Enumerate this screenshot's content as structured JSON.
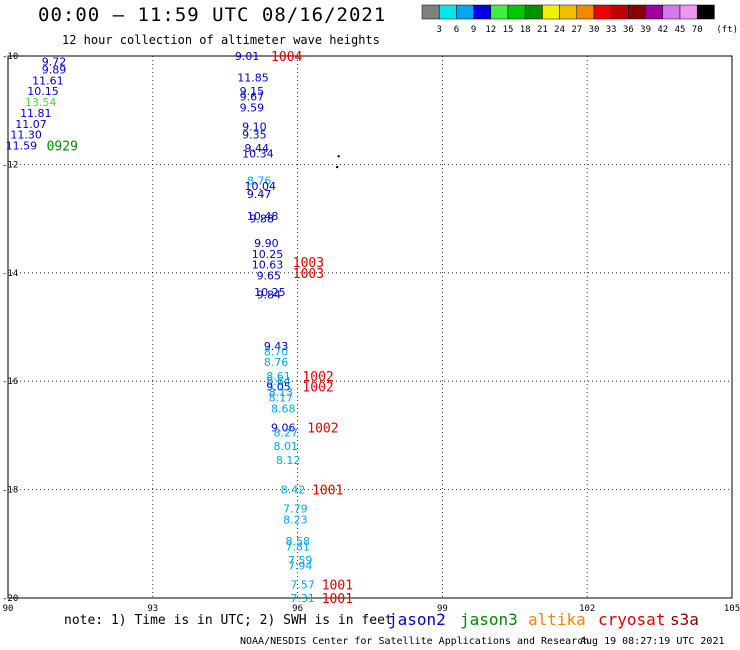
{
  "header": {
    "title": "00:00 – 11:59 UTC 08/16/2021",
    "subtitle": "12 hour collection of altimeter wave heights"
  },
  "colorbar": {
    "unit": "(ft)",
    "bins": [
      {
        "label": "3",
        "color": "#808080"
      },
      {
        "label": "6",
        "color": "#00e8e8"
      },
      {
        "label": "9",
        "color": "#00a8f0"
      },
      {
        "label": "12",
        "color": "#0000e8"
      },
      {
        "label": "15",
        "color": "#40f040"
      },
      {
        "label": "18",
        "color": "#00c800"
      },
      {
        "label": "21",
        "color": "#009000"
      },
      {
        "label": "24",
        "color": "#f0f000"
      },
      {
        "label": "27",
        "color": "#f0c000"
      },
      {
        "label": "30",
        "color": "#f08800"
      },
      {
        "label": "33",
        "color": "#f00000"
      },
      {
        "label": "36",
        "color": "#c00000"
      },
      {
        "label": "39",
        "color": "#880000"
      },
      {
        "label": "42",
        "color": "#a000a0"
      },
      {
        "label": "45",
        "color": "#d878f0"
      },
      {
        "label": "70",
        "color": "#f098f0"
      },
      {
        "label": "",
        "color": "#000000"
      }
    ]
  },
  "chart_data": {
    "type": "scatter",
    "xlim": [
      90,
      105
    ],
    "ylim": [
      -20,
      -10
    ],
    "x_ticks": [
      "90",
      "93",
      "96",
      "99",
      "102",
      "105"
    ],
    "y_ticks": [
      "-10",
      "-12",
      "-14",
      "-16",
      "-18",
      "-20"
    ],
    "grid": true,
    "points": [
      {
        "x": 90.7,
        "y": -10.1,
        "v": "9.72",
        "color": "#0000c8"
      },
      {
        "x": 90.7,
        "y": -10.25,
        "v": "9.89",
        "color": "#0000c8"
      },
      {
        "x": 90.5,
        "y": -10.45,
        "v": "11.61",
        "color": "#0000c8"
      },
      {
        "x": 90.4,
        "y": -10.65,
        "v": "10.15",
        "color": "#0000c8"
      },
      {
        "x": 90.35,
        "y": -10.85,
        "v": "13.54",
        "color": "#40e040"
      },
      {
        "x": 90.25,
        "y": -11.05,
        "v": "11.81",
        "color": "#0000c8"
      },
      {
        "x": 90.15,
        "y": -11.25,
        "v": "11.07",
        "color": "#0000c8"
      },
      {
        "x": 90.05,
        "y": -11.45,
        "v": "11.30",
        "color": "#0000c8"
      },
      {
        "x": 89.95,
        "y": -11.65,
        "v": "11.59",
        "color": "#0000c8"
      },
      {
        "x": 94.7,
        "y": -10.0,
        "v": "9.01",
        "color": "#0000c8"
      },
      {
        "x": 94.75,
        "y": -10.4,
        "v": "11.85",
        "color": "#0000c8"
      },
      {
        "x": 94.8,
        "y": -10.65,
        "v": "9.15",
        "color": "#0000c8"
      },
      {
        "x": 94.8,
        "y": -10.75,
        "v": "9.67",
        "color": "#0000c8"
      },
      {
        "x": 94.8,
        "y": -10.95,
        "v": "9.59",
        "color": "#0000c8"
      },
      {
        "x": 94.85,
        "y": -11.3,
        "v": "9.10",
        "color": "#0000c8"
      },
      {
        "x": 94.85,
        "y": -11.45,
        "v": "9.35",
        "color": "#0000c8"
      },
      {
        "x": 94.9,
        "y": -11.7,
        "v": "9.44",
        "color": "#0000c8"
      },
      {
        "x": 94.85,
        "y": -11.8,
        "v": "10.34",
        "color": "#0000c8"
      },
      {
        "x": 94.95,
        "y": -12.3,
        "v": "8.76",
        "color": "#00a8f0"
      },
      {
        "x": 94.9,
        "y": -12.4,
        "v": "10.04",
        "color": "#0000c8"
      },
      {
        "x": 94.95,
        "y": -12.55,
        "v": "9.47",
        "color": "#0000c8"
      },
      {
        "x": 94.95,
        "y": -12.95,
        "v": "10.48",
        "color": "#0000c8"
      },
      {
        "x": 95.0,
        "y": -13.0,
        "v": "9.88",
        "color": "#0000c8"
      },
      {
        "x": 95.1,
        "y": -13.45,
        "v": "9.90",
        "color": "#0000c8"
      },
      {
        "x": 95.05,
        "y": -13.65,
        "v": "10.25",
        "color": "#0000c8"
      },
      {
        "x": 95.05,
        "y": -13.85,
        "v": "10.63",
        "color": "#0000c8"
      },
      {
        "x": 95.15,
        "y": -14.05,
        "v": "9.65",
        "color": "#0000c8"
      },
      {
        "x": 95.1,
        "y": -14.35,
        "v": "10.25",
        "color": "#0000c8"
      },
      {
        "x": 95.15,
        "y": -14.4,
        "v": "9.84",
        "color": "#0000c8"
      },
      {
        "x": 95.3,
        "y": -15.35,
        "v": "9.43",
        "color": "#0000c8"
      },
      {
        "x": 95.3,
        "y": -15.45,
        "v": "8.70",
        "color": "#00a8f0"
      },
      {
        "x": 95.3,
        "y": -15.65,
        "v": "8.76",
        "color": "#00a8f0"
      },
      {
        "x": 95.35,
        "y": -15.9,
        "v": "8.61",
        "color": "#00a8f0"
      },
      {
        "x": 95.35,
        "y": -16.0,
        "v": "8.64",
        "color": "#00a8f0"
      },
      {
        "x": 95.35,
        "y": -16.1,
        "v": "9.05",
        "color": "#0000c8"
      },
      {
        "x": 95.4,
        "y": -16.2,
        "v": "8.13",
        "color": "#00a8f0"
      },
      {
        "x": 95.4,
        "y": -16.3,
        "v": "8.17",
        "color": "#00a8f0"
      },
      {
        "x": 95.45,
        "y": -16.5,
        "v": "8.68",
        "color": "#00a8f0"
      },
      {
        "x": 95.45,
        "y": -16.85,
        "v": "9.06",
        "color": "#0000c8"
      },
      {
        "x": 95.5,
        "y": -16.95,
        "v": "8.27",
        "color": "#00a8f0"
      },
      {
        "x": 95.5,
        "y": -17.2,
        "v": "8.01",
        "color": "#00a8f0"
      },
      {
        "x": 95.55,
        "y": -17.45,
        "v": "8.12",
        "color": "#00a8f0"
      },
      {
        "x": 95.65,
        "y": -18.0,
        "v": "8.42",
        "color": "#00a8f0"
      },
      {
        "x": 95.7,
        "y": -18.35,
        "v": "7.79",
        "color": "#00a8f0"
      },
      {
        "x": 95.7,
        "y": -18.55,
        "v": "8.23",
        "color": "#00a8f0"
      },
      {
        "x": 95.75,
        "y": -18.95,
        "v": "8.58",
        "color": "#00a8f0"
      },
      {
        "x": 95.75,
        "y": -19.05,
        "v": "7.81",
        "color": "#00a8f0"
      },
      {
        "x": 95.8,
        "y": -19.3,
        "v": "7.59",
        "color": "#00a8f0"
      },
      {
        "x": 95.8,
        "y": -19.4,
        "v": "7.94",
        "color": "#00a8f0"
      },
      {
        "x": 95.85,
        "y": -19.75,
        "v": "7.57",
        "color": "#00a8f0"
      },
      {
        "x": 95.85,
        "y": -20.0,
        "v": "7.31",
        "color": "#00a8f0"
      }
    ],
    "pass_times": [
      {
        "x": 90.8,
        "y": -11.65,
        "v": "0929",
        "color": "#008800"
      },
      {
        "x": 95.45,
        "y": -10.0,
        "v": "1004",
        "color": "#e00000"
      },
      {
        "x": 95.9,
        "y": -13.8,
        "v": "1003",
        "color": "#e00000"
      },
      {
        "x": 95.9,
        "y": -14.0,
        "v": "1003",
        "color": "#e00000"
      },
      {
        "x": 96.1,
        "y": -15.9,
        "v": "1002",
        "color": "#e00000"
      },
      {
        "x": 96.1,
        "y": -16.1,
        "v": "1002",
        "color": "#e00000"
      },
      {
        "x": 96.2,
        "y": -16.85,
        "v": "1002",
        "color": "#e00000"
      },
      {
        "x": 96.3,
        "y": -18.0,
        "v": "1001",
        "color": "#e00000"
      },
      {
        "x": 96.5,
        "y": -19.75,
        "v": "1001",
        "color": "#e00000"
      },
      {
        "x": 96.5,
        "y": -20.0,
        "v": "1001",
        "color": "#e00000"
      }
    ],
    "islands": [
      {
        "x": 96.85,
        "y": -11.85
      },
      {
        "x": 96.82,
        "y": -12.05
      }
    ]
  },
  "note": "note: 1) Time is in UTC; 2) SWH is in feet",
  "legend": [
    {
      "label": "jason2",
      "color": "#0000c8"
    },
    {
      "label": "jason3",
      "color": "#008800"
    },
    {
      "label": "altika",
      "color": "#f08800"
    },
    {
      "label": "cryosat",
      "color": "#e00000"
    },
    {
      "label": "s3a",
      "color": "#880000"
    }
  ],
  "footer": {
    "credit": "NOAA/NESDIS Center for Satellite Applications and Research",
    "generated": "Aug 19 08:27:19 UTC 2021"
  }
}
